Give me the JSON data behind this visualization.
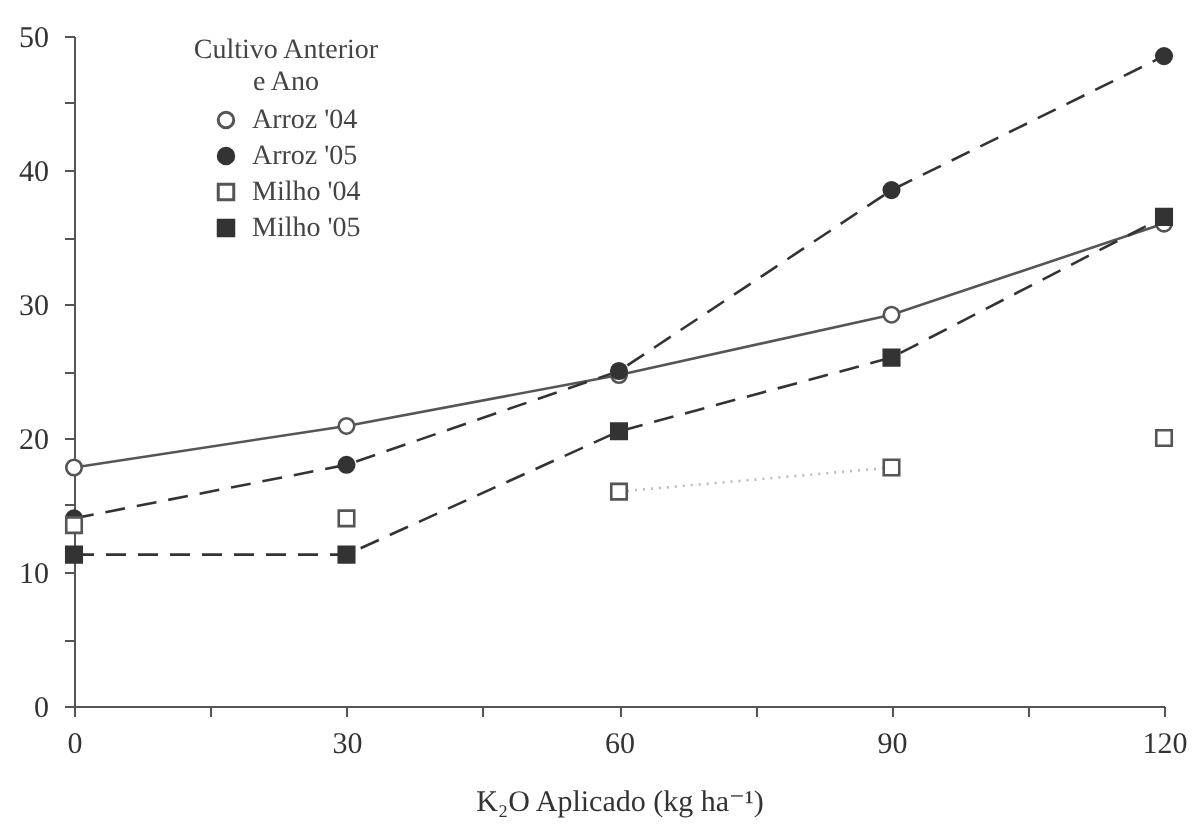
{
  "chart_data": {
    "type": "line",
    "xlabel": "K₂O Aplicado (kg ha⁻¹)",
    "legend_title": "Cultivo Anterior\ne Ano",
    "legend": "top left",
    "grid": false,
    "x": [
      0,
      30,
      60,
      90,
      120
    ],
    "xlim": [
      0,
      120
    ],
    "xticks": [
      0,
      {
        "value": 15,
        "label": null
      },
      30,
      {
        "value": 45,
        "label": null
      },
      60,
      {
        "value": 75,
        "label": null
      },
      90,
      {
        "value": 105,
        "label": null
      },
      120
    ],
    "ylim": [
      0,
      50
    ],
    "yticks": [
      0,
      {
        "value": 5,
        "label": null
      },
      10,
      {
        "value": 15,
        "label": null
      },
      20,
      {
        "value": 25,
        "label": null
      },
      30,
      {
        "value": 35,
        "label": null
      },
      40,
      {
        "value": 45,
        "label": null
      },
      50
    ],
    "series": [
      {
        "name": "Arroz '04",
        "color": "#555555",
        "line_style": "solid",
        "marker": "circle-open",
        "values": [
          17.8,
          20.9,
          24.7,
          29.2,
          36
        ]
      },
      {
        "name": "Arroz '05",
        "color": "#333333",
        "line_style": "dashed",
        "marker": "circle",
        "values": [
          14,
          18,
          25,
          38.5,
          48.5
        ]
      },
      {
        "name": "Milho '04",
        "type": "scatter",
        "color": "#555555",
        "marker": "square-open",
        "values": [
          13.5,
          14,
          16,
          17.8,
          20
        ]
      },
      {
        "name": "Milho '05",
        "color": "#333333",
        "line_style": "dashed",
        "marker": "square",
        "values": [
          11.3,
          11.3,
          20.5,
          26,
          36.5
        ]
      },
      {
        "color": "#bbbbbb",
        "line_style": "dotted",
        "marker": "none",
        "x": [
          60,
          90
        ],
        "values": [
          16,
          17.8
        ]
      }
    ]
  }
}
